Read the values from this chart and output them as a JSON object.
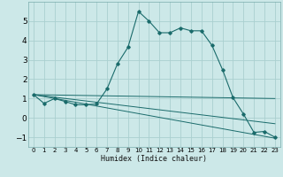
{
  "xlabel": "Humidex (Indice chaleur)",
  "background_color": "#cce8e8",
  "grid_color": "#aacfcf",
  "line_color": "#1a6b6b",
  "xlim": [
    -0.5,
    23.5
  ],
  "ylim": [
    -1.5,
    6.0
  ],
  "xticks": [
    0,
    1,
    2,
    3,
    4,
    5,
    6,
    7,
    8,
    9,
    10,
    11,
    12,
    13,
    14,
    15,
    16,
    17,
    18,
    19,
    20,
    21,
    22,
    23
  ],
  "yticks": [
    -1,
    0,
    1,
    2,
    3,
    4,
    5
  ],
  "main_x": [
    0,
    1,
    2,
    3,
    4,
    5,
    6,
    7,
    8,
    9,
    10,
    11,
    12,
    13,
    14,
    15,
    16,
    17,
    18,
    19,
    20,
    21,
    22,
    23
  ],
  "main_y": [
    1.2,
    0.75,
    1.0,
    0.85,
    0.68,
    0.68,
    0.72,
    1.5,
    2.8,
    3.65,
    5.5,
    5.0,
    4.4,
    4.4,
    4.65,
    4.5,
    4.5,
    3.75,
    2.5,
    1.05,
    0.2,
    -0.75,
    -0.7,
    -1.0
  ],
  "line1_x": [
    0,
    23
  ],
  "line1_y": [
    1.2,
    1.0
  ],
  "line2_x": [
    0,
    23
  ],
  "line2_y": [
    1.2,
    -0.3
  ],
  "line3_x": [
    0,
    23
  ],
  "line3_y": [
    1.2,
    -1.05
  ]
}
